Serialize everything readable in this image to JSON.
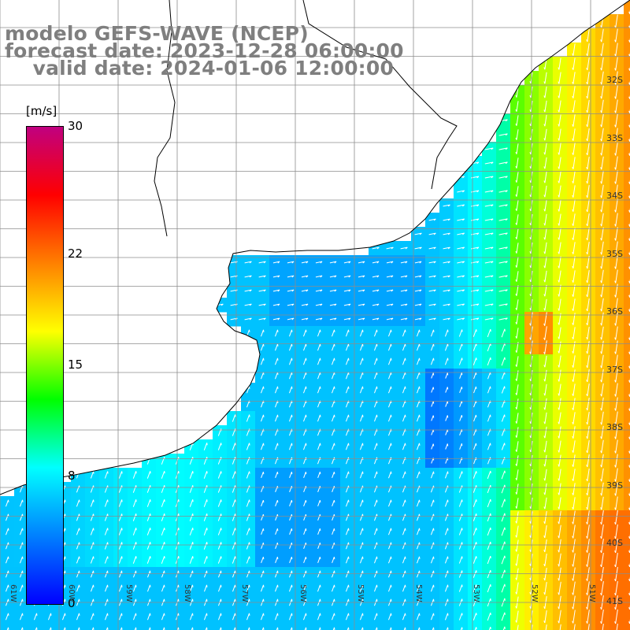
{
  "title": {
    "line1": "modelo GEFS-WAVE (NCEP)",
    "line2": "forecast date: 2023-12-28 06:00:00",
    "line3": "    valid date: 2024-01-06 12:00:00"
  },
  "colorbar": {
    "unit": "[m/s]",
    "min": 0,
    "max": 30,
    "ticks": [
      "30",
      "22",
      "15",
      "8",
      "0"
    ],
    "tick_values": [
      30,
      22,
      15,
      8,
      0
    ],
    "stops": [
      "#0000ff",
      "#0080ff",
      "#00ffff",
      "#00ff00",
      "#ffff00",
      "#ff8000",
      "#ff0000",
      "#c00080"
    ]
  },
  "lat_labels": [
    "32S",
    "33S",
    "34S",
    "35S",
    "36S",
    "37S",
    "38S",
    "39S",
    "40S",
    "41S"
  ],
  "lon_labels": [
    "61W",
    "60W",
    "59W",
    "58W",
    "57W",
    "56W",
    "55W",
    "54W",
    "53W",
    "52W",
    "51W"
  ],
  "colors": {
    "land": "#ffffff",
    "grid": "#8c8c8c",
    "coast": "#000000",
    "arrows": "#ffffff",
    "title_text": "#7f7f7f"
  }
}
